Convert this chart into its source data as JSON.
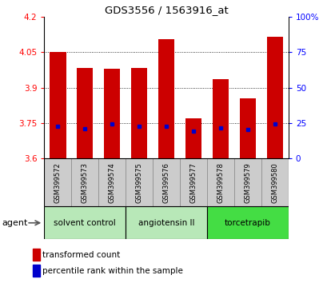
{
  "title": "GDS3556 / 1563916_at",
  "samples": [
    "GSM399572",
    "GSM399573",
    "GSM399574",
    "GSM399575",
    "GSM399576",
    "GSM399577",
    "GSM399578",
    "GSM399579",
    "GSM399580"
  ],
  "red_values": [
    4.05,
    3.985,
    3.98,
    3.985,
    4.105,
    3.77,
    3.935,
    3.855,
    4.115
  ],
  "blue_values": [
    3.735,
    3.725,
    3.745,
    3.735,
    3.738,
    3.715,
    3.728,
    3.722,
    3.748
  ],
  "ymin": 3.6,
  "ymax": 4.2,
  "yticks_left": [
    3.6,
    3.75,
    3.9,
    4.05,
    4.2
  ],
  "yticks_right": [
    0,
    25,
    50,
    75,
    100
  ],
  "groups": [
    {
      "label": "solvent control",
      "start": 0,
      "end": 3,
      "color": "#b8e8b8"
    },
    {
      "label": "angiotensin II",
      "start": 3,
      "end": 6,
      "color": "#b8e8b8"
    },
    {
      "label": "torcetrapib",
      "start": 6,
      "end": 9,
      "color": "#44dd44"
    }
  ],
  "bar_color": "#cc0000",
  "blue_color": "#0000cc",
  "bar_width": 0.6,
  "base": 3.6,
  "agent_label": "agent",
  "legend_items": [
    "transformed count",
    "percentile rank within the sample"
  ]
}
